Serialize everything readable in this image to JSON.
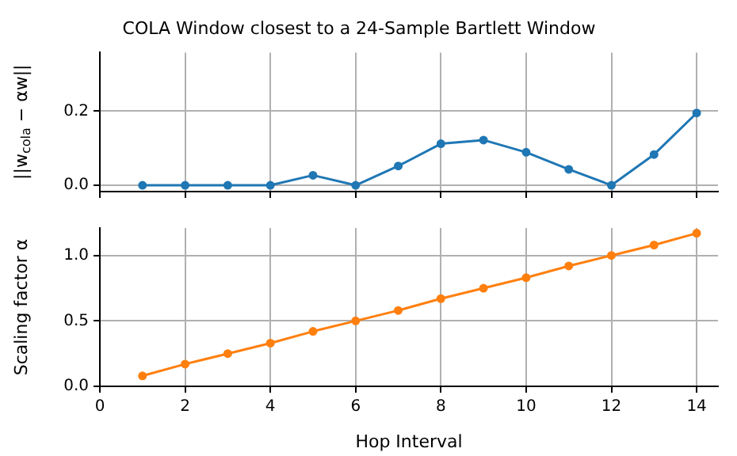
{
  "chart_data": [
    {
      "type": "line",
      "title": "COLA Window closest to a 24-Sample Bartlett Window",
      "ylabel": "||w$_{cola}$ − αw||",
      "x": [
        1,
        2,
        3,
        4,
        5,
        6,
        7,
        8,
        9,
        10,
        11,
        12,
        13,
        14
      ],
      "series": [
        {
          "color": "#1f77b4",
          "values": [
            0,
            0,
            0,
            0,
            0.027,
            0,
            0.052,
            0.112,
            0.122,
            0.089,
            0.043,
            0,
            0.083,
            0.195
          ]
        }
      ],
      "xlim": [
        0,
        14.5
      ],
      "xticks": [
        0,
        2,
        4,
        6,
        8,
        10,
        12,
        14
      ],
      "ylim": [
        -0.017,
        0.358
      ],
      "yticks": [
        {
          "value": 0,
          "label": "0.0"
        },
        {
          "value": 0.2,
          "label": "0.2"
        }
      ],
      "grid": true,
      "marker": "circle",
      "tick_labels": "y"
    },
    {
      "type": "line",
      "xlabel": "Hop Interval",
      "ylabel": "Scaling factor α",
      "x": [
        1,
        2,
        3,
        4,
        5,
        6,
        7,
        8,
        9,
        10,
        11,
        12,
        13,
        14
      ],
      "series": [
        {
          "color": "#ff7f0e",
          "values": [
            0.08,
            0.17,
            0.25,
            0.33,
            0.42,
            0.5,
            0.58,
            0.67,
            0.75,
            0.83,
            0.92,
            1.0,
            1.08,
            1.17
          ]
        }
      ],
      "xlim": [
        0,
        14.5
      ],
      "xticks": [
        0,
        2,
        4,
        6,
        8,
        10,
        12,
        14
      ],
      "ylim": [
        0,
        1.21
      ],
      "yticks": [
        {
          "value": 0,
          "label": "0.0"
        },
        {
          "value": 0.5,
          "label": "0.5"
        },
        {
          "value": 1,
          "label": "1.0"
        }
      ],
      "grid": true,
      "marker": "circle"
    }
  ]
}
